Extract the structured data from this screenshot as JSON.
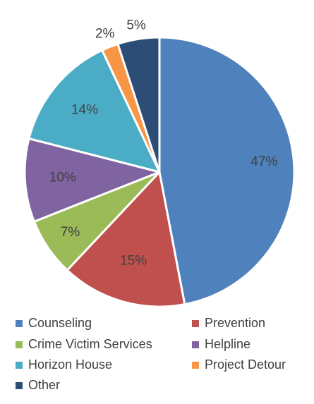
{
  "chart_data": {
    "type": "pie",
    "title": "",
    "slices": [
      {
        "label": "Counseling",
        "value": 47,
        "display": "47%",
        "color": "#4f81bd"
      },
      {
        "label": "Prevention",
        "value": 15,
        "display": "15%",
        "color": "#c0504d"
      },
      {
        "label": "Crime Victim Services",
        "value": 7,
        "display": "7%",
        "color": "#9bbb59"
      },
      {
        "label": "Helpline",
        "value": 10,
        "display": "10%",
        "color": "#8064a2"
      },
      {
        "label": "Horizon House",
        "value": 14,
        "display": "14%",
        "color": "#4bacc6"
      },
      {
        "label": "Project Detour",
        "value": 2,
        "display": "2%",
        "color": "#f79646"
      },
      {
        "label": "Other",
        "value": 5,
        "display": "5%",
        "color": "#2c4d75"
      }
    ],
    "legend": [
      "Counseling",
      "Prevention",
      "Crime Victim Services",
      "Helpline",
      "Horizon House",
      "Project Detour",
      "Other"
    ],
    "legend_placement": "bottom"
  }
}
